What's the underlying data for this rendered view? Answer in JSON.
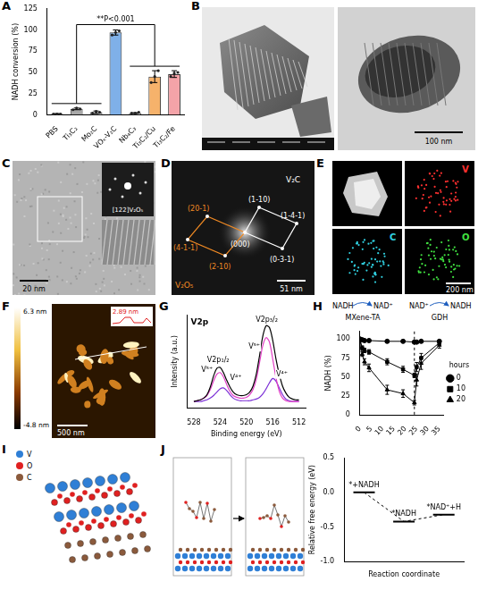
{
  "panel_labels": [
    "A",
    "B",
    "C",
    "D",
    "E",
    "F",
    "G",
    "H",
    "I",
    "J"
  ],
  "chart_data": [
    {
      "type": "bar",
      "y_label": "NADH conversion (%)",
      "categories": [
        "PBS",
        "Ti₃C₂",
        "Mo₂C",
        "VOₓ-V₂C",
        "Nb₄C₃",
        "Ti₃C₂/Cu",
        "Ti₃C₂/Fe"
      ],
      "values": [
        1,
        7,
        3,
        97,
        2,
        45,
        48
      ],
      "errors": [
        0.5,
        1,
        1.5,
        3,
        0.5,
        7,
        4
      ],
      "points": [
        [
          1,
          1,
          1
        ],
        [
          6,
          8,
          7
        ],
        [
          2,
          4,
          3
        ],
        [
          94,
          97,
          99
        ],
        [
          2,
          2,
          3
        ],
        [
          38,
          45,
          52
        ],
        [
          45,
          49,
          50
        ]
      ],
      "colors": [
        "#a8a8a8",
        "#a8a8a8",
        "#bdbdbd",
        "#7fb0e8",
        "#cfcfcf",
        "#f6b26b",
        "#f4a3a8"
      ],
      "ylim": [
        0,
        125
      ],
      "yticks": [
        0,
        25,
        50,
        75,
        100,
        125
      ],
      "grid": false,
      "annotation": "**P<0.001"
    },
    {
      "type": "line",
      "title": "V2p",
      "x_label": "Binding energy (eV)",
      "y_label": "Intensity (a.u.)",
      "x": [
        528,
        527.5,
        527,
        526.5,
        526,
        525.5,
        525,
        524.5,
        524,
        523.5,
        523,
        522.5,
        522,
        521.5,
        521,
        520.5,
        520,
        519.5,
        519,
        518.5,
        518,
        517.5,
        517,
        516.5,
        516,
        515.5,
        515,
        514.5,
        514,
        513.5,
        513,
        512.5,
        512
      ],
      "series": [
        {
          "color": "#000000",
          "values": [
            0.08,
            0.09,
            0.1,
            0.12,
            0.16,
            0.25,
            0.38,
            0.47,
            0.48,
            0.42,
            0.33,
            0.25,
            0.19,
            0.16,
            0.15,
            0.15,
            0.16,
            0.19,
            0.26,
            0.4,
            0.62,
            0.85,
            0.97,
            0.95,
            0.8,
            0.58,
            0.4,
            0.26,
            0.18,
            0.13,
            0.11,
            0.1,
            0.1
          ]
        },
        {
          "color": "#e23fc6",
          "values": [
            0.08,
            0.09,
            0.1,
            0.12,
            0.15,
            0.22,
            0.32,
            0.4,
            0.42,
            0.37,
            0.28,
            0.2,
            0.15,
            0.13,
            0.12,
            0.12,
            0.13,
            0.16,
            0.22,
            0.34,
            0.54,
            0.74,
            0.83,
            0.78,
            0.58,
            0.36,
            0.2,
            0.12,
            0.09,
            0.08,
            0.08,
            0.08,
            0.08
          ]
        },
        {
          "color": "#7b2fd6",
          "values": [
            0.08,
            0.08,
            0.08,
            0.09,
            0.1,
            0.12,
            0.15,
            0.19,
            0.23,
            0.24,
            0.21,
            0.16,
            0.12,
            0.1,
            0.09,
            0.09,
            0.09,
            0.09,
            0.1,
            0.11,
            0.13,
            0.17,
            0.23,
            0.3,
            0.35,
            0.32,
            0.24,
            0.16,
            0.11,
            0.09,
            0.08,
            0.08,
            0.08
          ]
        }
      ],
      "xlim": [
        529,
        511
      ],
      "xticks": [
        528,
        524,
        520,
        516,
        512
      ],
      "ylim": [
        0,
        1.1
      ],
      "tick_labels": "x",
      "grid": false,
      "annotations": [
        {
          "text": "V2p₁/₂",
          "x": 524.3,
          "y": 0.57
        },
        {
          "text": "V2p₃/₂",
          "x": 516.9,
          "y": 1.04
        },
        {
          "text": "V⁵⁺",
          "x": 526.0,
          "y": 0.45
        },
        {
          "text": "V⁴⁺",
          "x": 521.6,
          "y": 0.36
        },
        {
          "text": "V⁵⁺",
          "x": 518.8,
          "y": 0.72
        },
        {
          "text": "V⁴⁺",
          "x": 514.6,
          "y": 0.4
        }
      ]
    },
    {
      "type": "line",
      "y_label": "NADH (%)",
      "x": [
        0,
        1,
        2,
        4,
        12,
        19,
        24,
        25,
        27,
        35
      ],
      "series": [
        {
          "name": "0",
          "color": "#000000",
          "marker": "circle",
          "values": [
            100,
            99,
            98,
            98,
            97,
            97,
            96,
            96,
            97,
            97
          ],
          "errors": [
            0,
            1,
            1,
            1,
            1,
            1,
            2,
            1,
            1,
            1
          ]
        },
        {
          "name": "10",
          "color": "#000000",
          "marker": "square",
          "values": [
            100,
            88,
            85,
            83,
            70,
            60,
            52,
            63,
            75,
            95
          ],
          "errors": [
            0,
            3,
            3,
            3,
            4,
            4,
            3,
            6,
            6,
            3
          ]
        },
        {
          "name": "20",
          "color": "#000000",
          "marker": "triangle",
          "values": [
            100,
            80,
            70,
            62,
            33,
            28,
            16,
            46,
            68,
            92
          ],
          "errors": [
            0,
            3,
            4,
            5,
            6,
            5,
            3,
            8,
            8,
            4
          ]
        }
      ],
      "xlim": [
        0,
        37
      ],
      "xticks": [
        0,
        5,
        10,
        15,
        20,
        25,
        30,
        35
      ],
      "ylim": [
        0,
        110
      ],
      "yticks": [
        0,
        25,
        50,
        75,
        100
      ],
      "legend": "right",
      "legend_title": "hours",
      "grid": false,
      "reference_line_x": 24,
      "scheme": [
        {
          "from": "NADH",
          "to": "NAD⁺",
          "agent": "MXene-TA"
        },
        {
          "from": "NAD⁺",
          "to": "NADH",
          "agent": "GDH"
        }
      ]
    },
    {
      "type": "line",
      "x_label": "Reaction coordinate",
      "y_label": "Relative free energy (eV)",
      "categories": [
        "*+NADH",
        "*NADH",
        "*NAD⁺+H"
      ],
      "values": [
        0,
        -0.42,
        -0.32
      ],
      "ylim": [
        -1,
        0.5
      ],
      "yticks": [
        {
          "value": -1,
          "label": "-1.0"
        },
        -0.5,
        {
          "value": 0,
          "label": "0.0"
        },
        0.5
      ],
      "tick_labels": "y",
      "marker": "line",
      "line_style": "dashed",
      "color": "#000000",
      "grid": false
    }
  ],
  "images": {
    "B": {
      "scale_bar": "100 nm"
    },
    "C": {
      "inset_label": "[122]V₂O₅",
      "scale_bar": "20 nm"
    },
    "D": {
      "center": "(000)",
      "phases": [
        {
          "name": "V₂O₅",
          "spots": [
            "(20-1)",
            "(4-1-1)",
            "(2-10)"
          ]
        },
        {
          "name": "V₂C",
          "spots": [
            "(1-10)",
            "(1-4-1)",
            "(0-3-1)"
          ]
        }
      ],
      "scale_bar": "51 nm"
    },
    "E": {
      "maps": [
        "V",
        "C",
        "O"
      ],
      "scale_bar": "200 nm"
    },
    "F": {
      "colorbar_ticks": [
        {
          "value": 6.3,
          "label": "6.3 nm"
        },
        {
          "value": -4.8,
          "label": "-4.8 nm"
        }
      ],
      "profile_label": "2.89 nm",
      "scale_bar": "500 nm"
    },
    "I": {
      "legend": [
        {
          "name": "V",
          "color": "#2f7fd6"
        },
        {
          "name": "O",
          "color": "#e02020"
        },
        {
          "name": "C",
          "color": "#8b5a3c"
        }
      ]
    }
  }
}
